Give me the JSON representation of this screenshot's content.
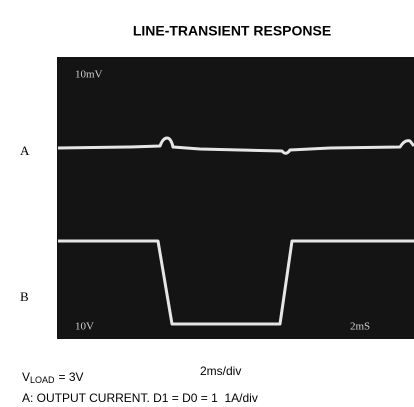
{
  "header": {
    "title": "LINE-TRANSIENT RESPONSE"
  },
  "scope": {
    "channel_labels": [
      "A",
      "B"
    ],
    "screen_labels": [
      "10mV",
      "10V",
      "2mS"
    ]
  },
  "footer": {
    "load": {
      "symbol": "V",
      "subscript": "LOAD",
      "value": "= 3V"
    },
    "timebase": "2ms/div",
    "channel_a": "A: OUTPUT CURRENT. D1 = D0 = 1  1A/div"
  }
}
